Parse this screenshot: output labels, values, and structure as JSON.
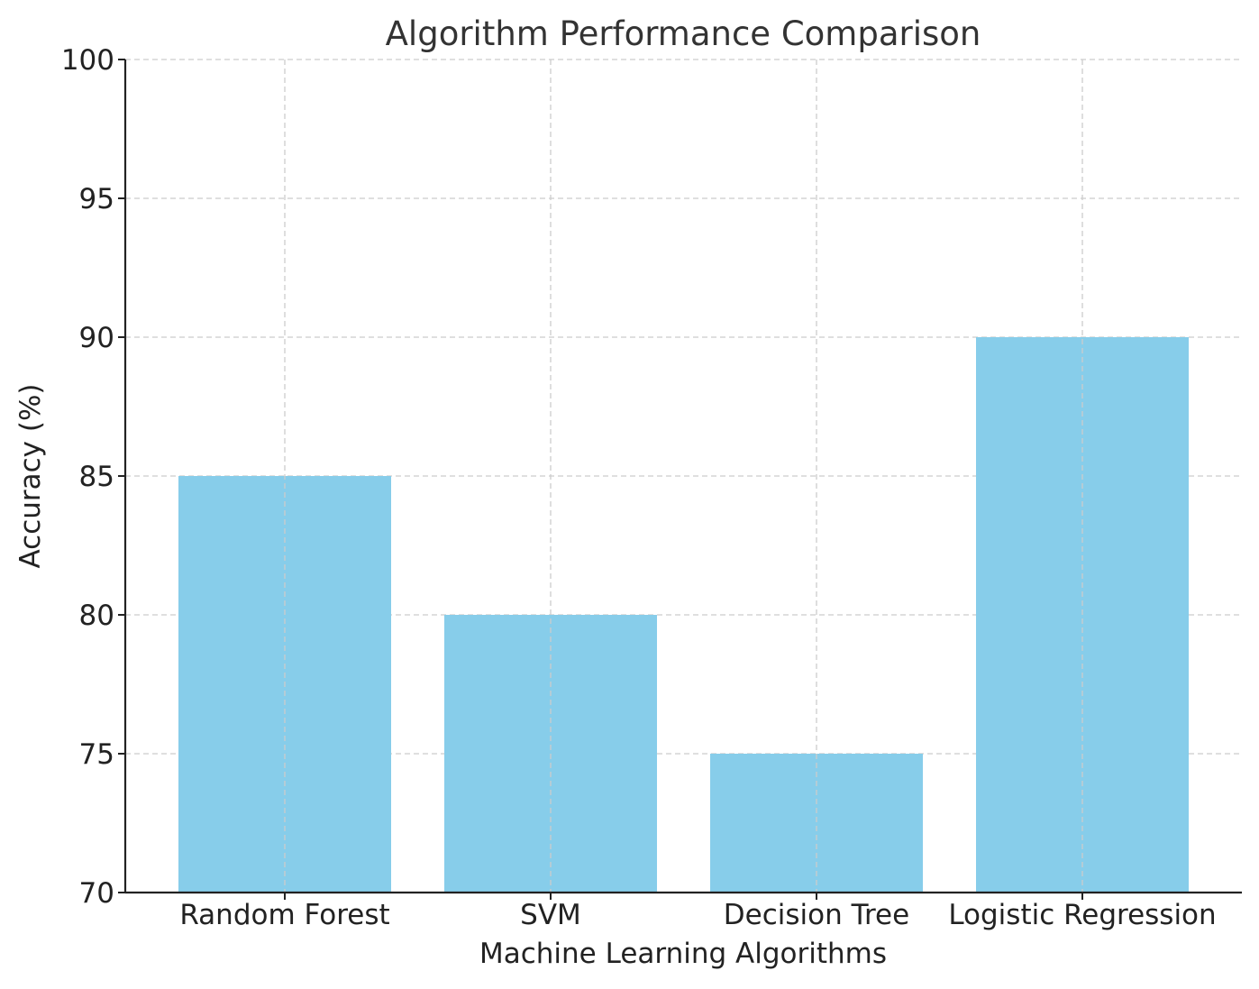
{
  "chart_data": {
    "type": "bar",
    "title": "Algorithm Performance Comparison",
    "xlabel": "Machine Learning Algorithms",
    "ylabel": "Accuracy (%)",
    "categories": [
      "Random Forest",
      "SVM",
      "Decision Tree",
      "Logistic Regression"
    ],
    "values": [
      85,
      80,
      75,
      90
    ],
    "ylim": [
      70,
      100
    ],
    "yticks": [
      70,
      75,
      80,
      85,
      90,
      95,
      100
    ],
    "grid": true,
    "bar_color": "#87CDEA",
    "legend": "none"
  }
}
